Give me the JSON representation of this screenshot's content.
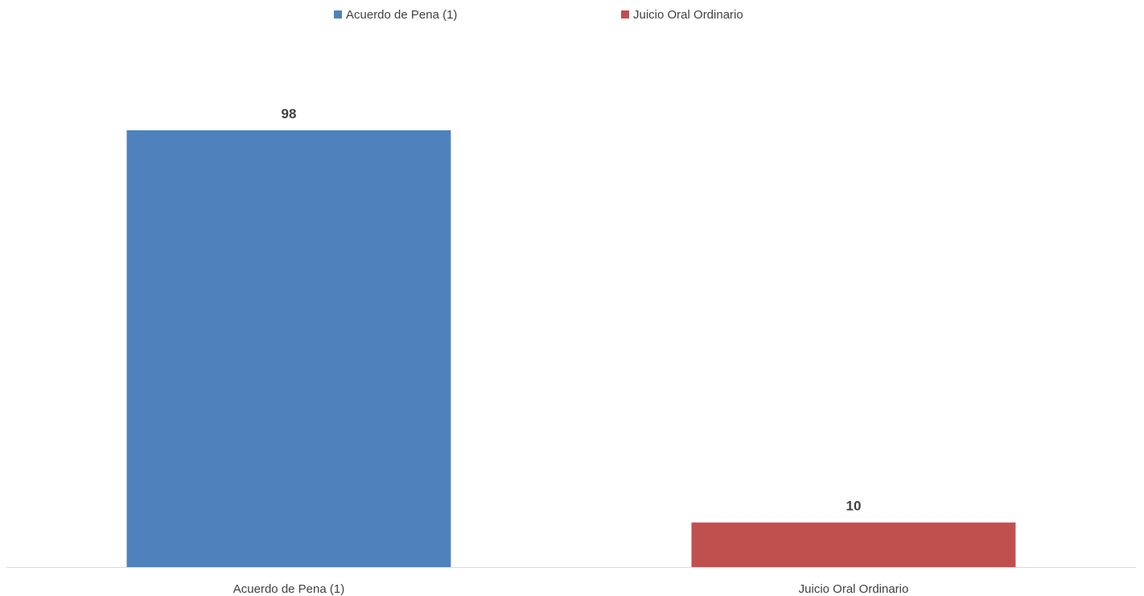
{
  "chart_data": {
    "type": "bar",
    "categories": [
      "Acuerdo de Pena (1)",
      "Juicio Oral Ordinario"
    ],
    "values": [
      98,
      10
    ],
    "colors": [
      "#4F81BD",
      "#C0504D"
    ],
    "series": [
      {
        "name": "Acuerdo de Pena (1)",
        "color": "#4F81BD"
      },
      {
        "name": "Juicio Oral Ordinario",
        "color": "#C0504D"
      }
    ],
    "data_labels": [
      "98",
      "10"
    ],
    "title": "",
    "xlabel": "",
    "ylabel": "",
    "ylim": [
      0,
      98
    ],
    "grid": false,
    "legend_position": "top"
  }
}
